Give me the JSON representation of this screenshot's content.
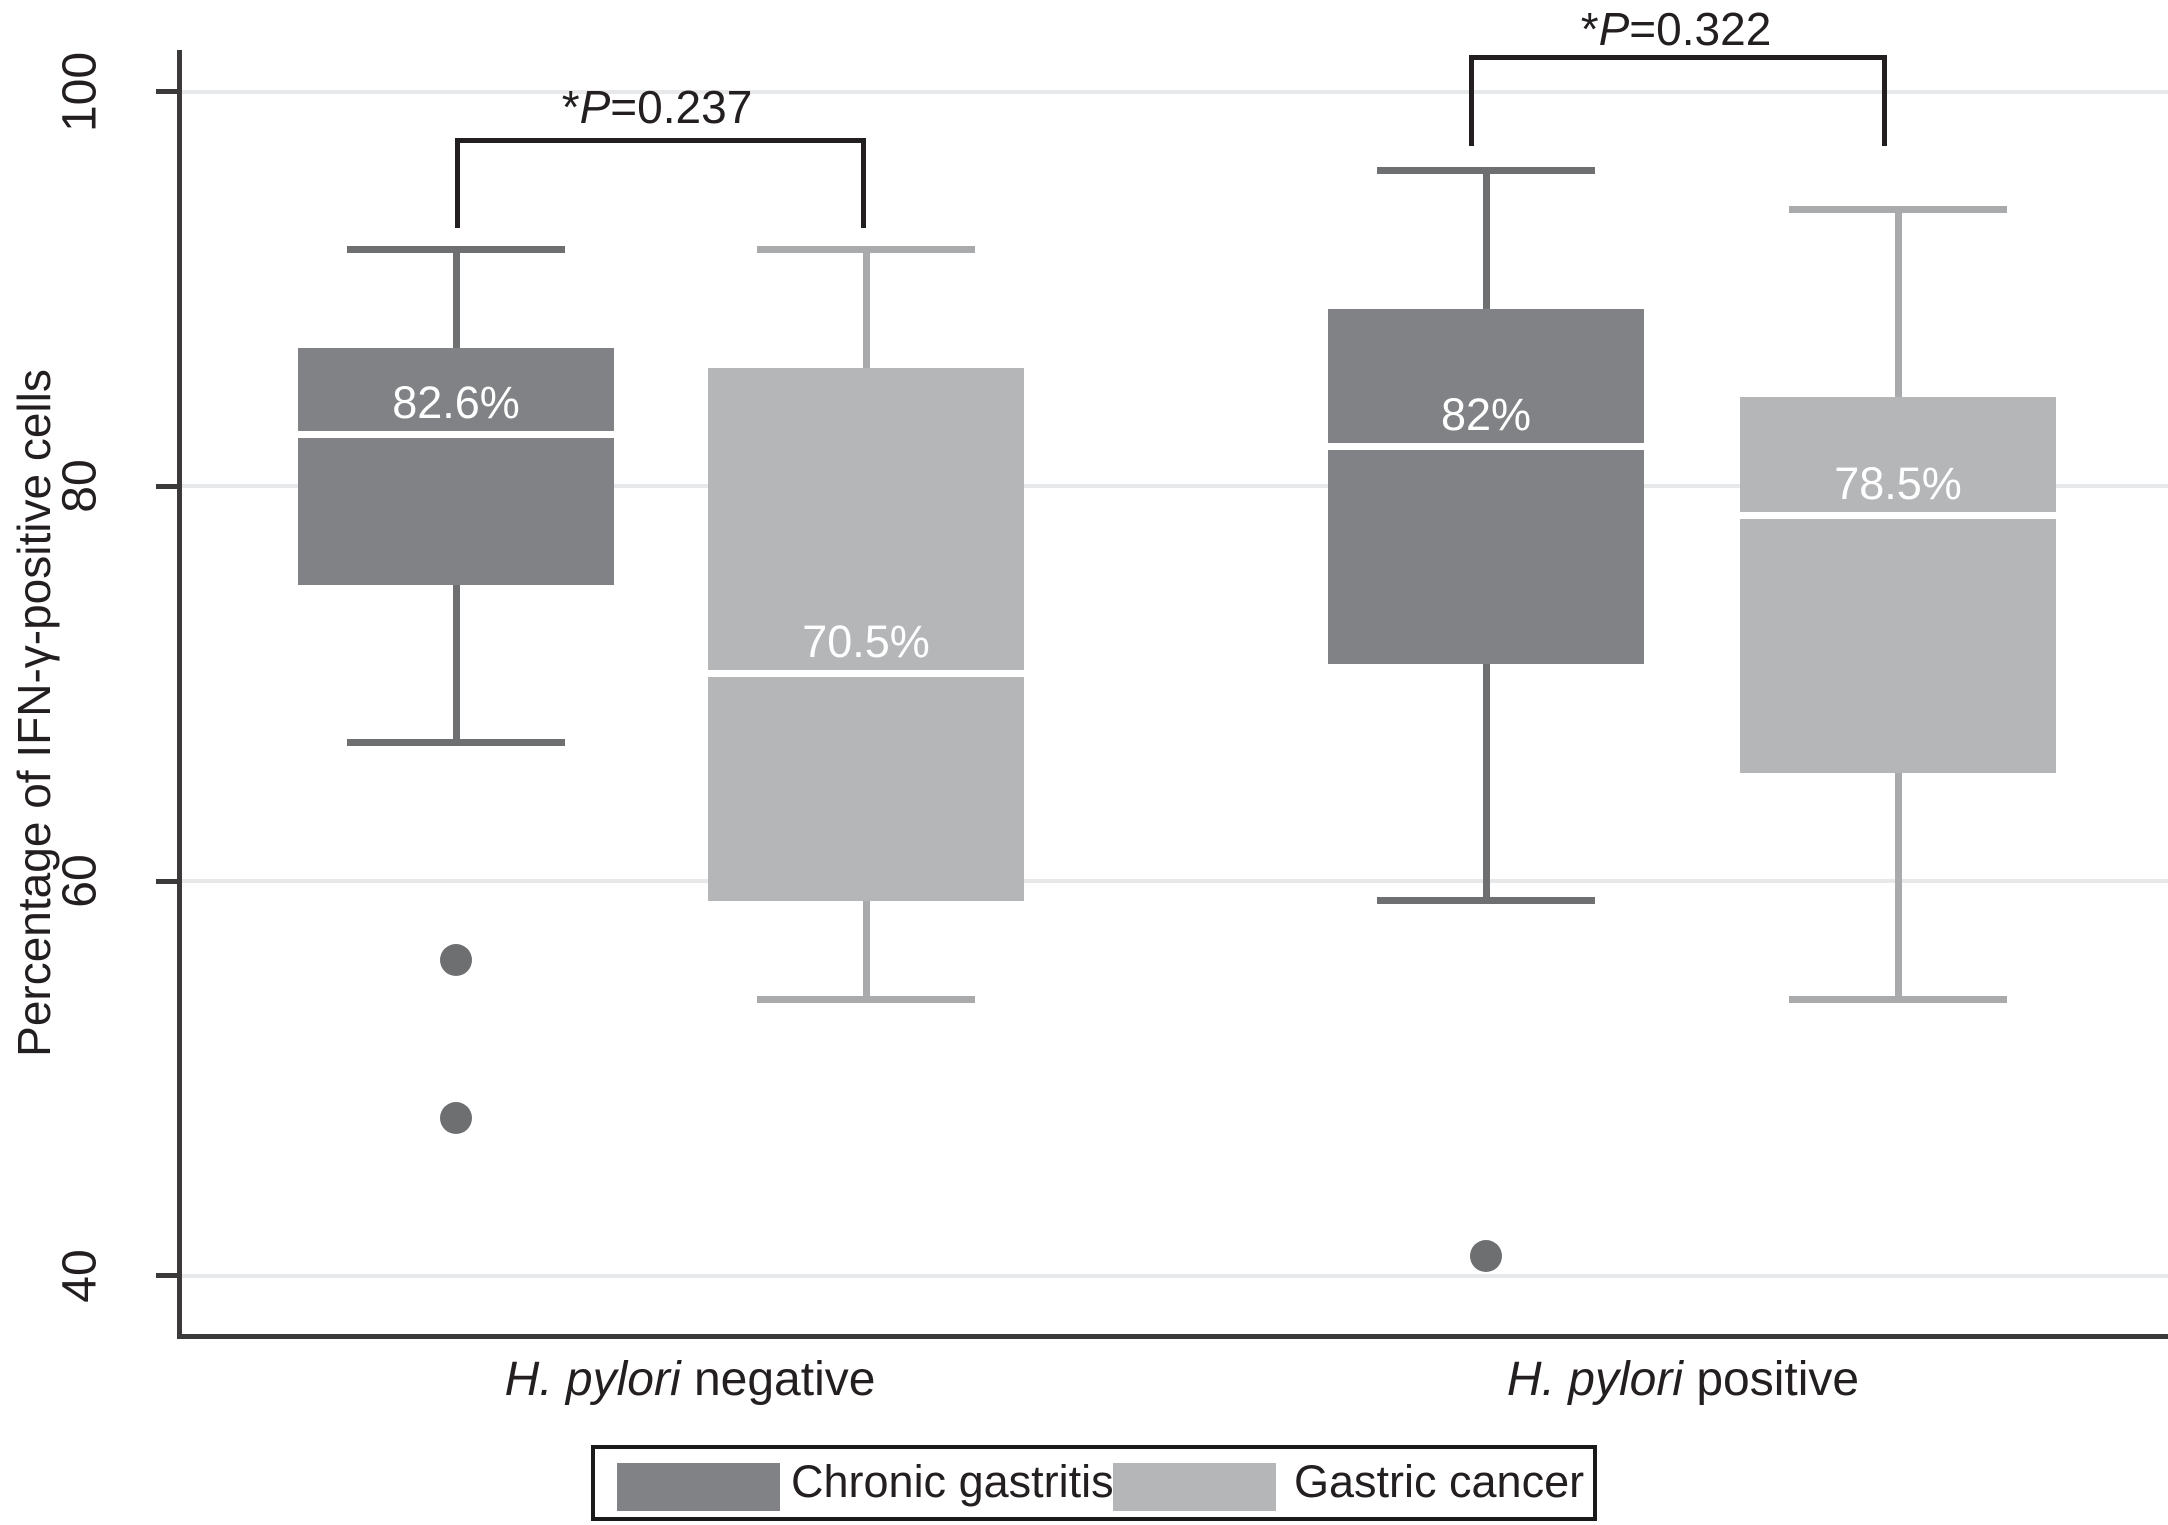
{
  "figure": {
    "background_color": "#ffffff",
    "axis_color": "#3b393a",
    "gridline_color": "#e7e8e9",
    "text_color": "#231f20",
    "y_axis_title": "Percentage of IFN-γ-positive cells",
    "x_labels": [
      {
        "italic": "H. pylori",
        "regular": " negative"
      },
      {
        "italic": "H. pylori",
        "regular": " positive"
      }
    ],
    "p_annotations": [
      {
        "pre": "*",
        "p": "P",
        "post": "=0.237"
      },
      {
        "pre": "*",
        "p": "P",
        "post": "=0.322"
      }
    ],
    "legend": {
      "items": [
        {
          "label": "Chronic gastritis",
          "color": "#808285"
        },
        {
          "label": "Gastric cancer",
          "color": "#b4b6b8"
        }
      ]
    }
  },
  "chart_data": {
    "type": "boxplot",
    "title": "",
    "xlabel": "",
    "ylabel": "Percentage of IFN-γ-positive cells",
    "ylim": [
      36,
      104
    ],
    "yticks": [
      100,
      80,
      60,
      40
    ],
    "grid": true,
    "legend_position": "bottom",
    "categories": [
      "H. pylori negative",
      "H. pylori positive"
    ],
    "series": [
      {
        "name": "Chronic gastritis",
        "color": "#808285",
        "whisker_color": "#6e6f71",
        "boxes": [
          {
            "category": "H. pylori negative",
            "whisker_low": 67,
            "q1": 75,
            "median": 82.6,
            "q3": 87,
            "whisker_high": 92,
            "median_label": "82.6%",
            "outliers": [
              56,
              48
            ]
          },
          {
            "category": "H. pylori positive",
            "whisker_low": 59,
            "q1": 71,
            "median": 82,
            "q3": 89,
            "whisker_high": 96,
            "median_label": "82%",
            "outliers": [
              41
            ]
          }
        ]
      },
      {
        "name": "Gastric cancer",
        "color": "#b4b6b8",
        "whisker_color": "#a8aaac",
        "boxes": [
          {
            "category": "H. pylori negative",
            "whisker_low": 54,
            "q1": 59,
            "median": 70.5,
            "q3": 86,
            "whisker_high": 92,
            "median_label": "70.5%",
            "outliers": []
          },
          {
            "category": "H. pylori positive",
            "whisker_low": 54,
            "q1": 65.5,
            "median": 78.5,
            "q3": 84.5,
            "whisker_high": 94,
            "median_label": "78.5%",
            "outliers": []
          }
        ]
      }
    ],
    "annotations": [
      {
        "label": "*P=0.237",
        "between": [
          "Chronic gastritis",
          "Gastric cancer"
        ],
        "category": "H. pylori negative"
      },
      {
        "label": "*P=0.322",
        "between": [
          "Chronic gastritis",
          "Gastric cancer"
        ],
        "category": "H. pylori positive"
      }
    ]
  }
}
